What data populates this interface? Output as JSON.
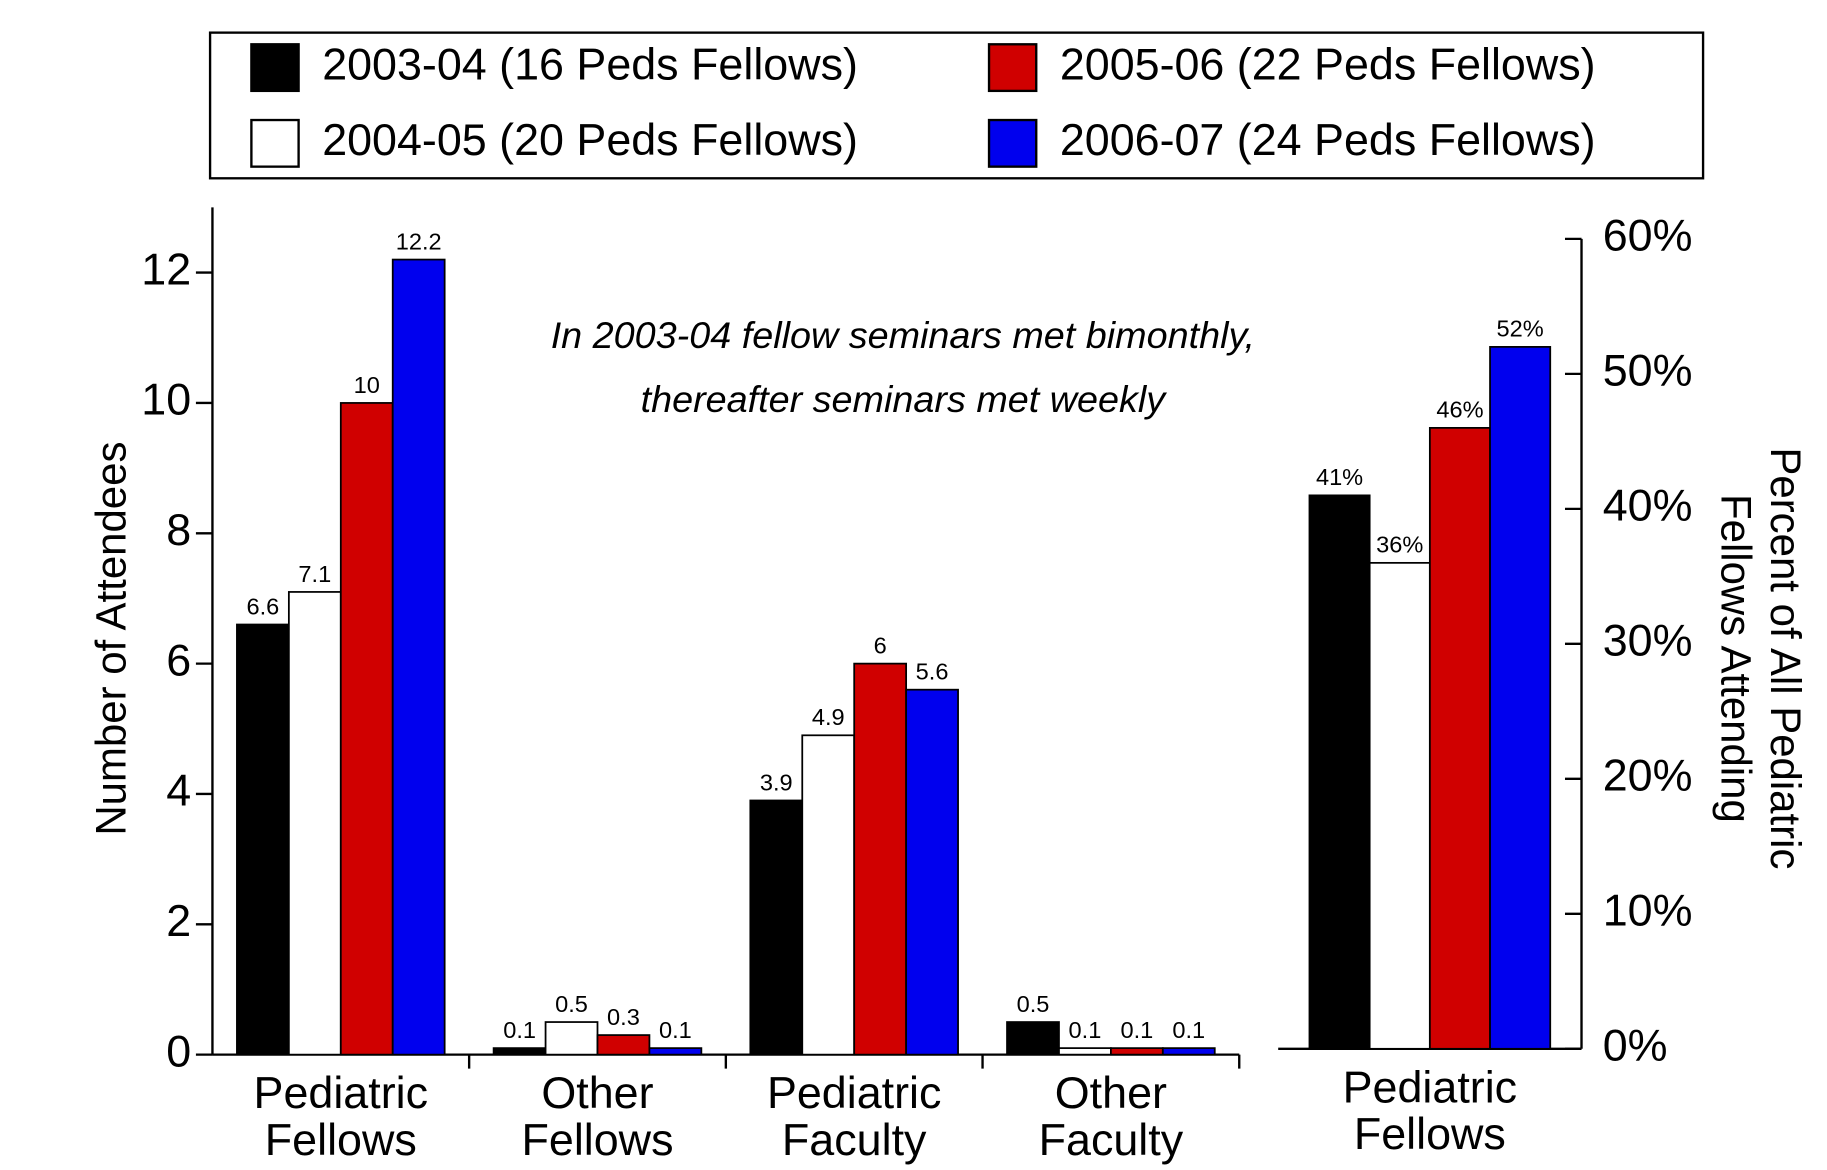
{
  "chart_data": [
    {
      "type": "bar",
      "ylabel": "Number of Attendees",
      "annotation": [
        "In 2003-04 fellow seminars met bimonthly,",
        "thereafter seminars met weekly"
      ],
      "categories": [
        "Pediatric Fellows",
        "Other Fellows",
        "Pediatric Faculty",
        "Other Faculty"
      ],
      "series": [
        {
          "name": "2003-04 (16 Peds Fellows)",
          "color": "#000000",
          "values": [
            6.6,
            0.1,
            3.9,
            0.5
          ]
        },
        {
          "name": "2004-05 (20 Peds Fellows)",
          "color": "#ffffff",
          "values": [
            7.1,
            0.5,
            4.9,
            0.1
          ]
        },
        {
          "name": "2005-06 (22 Peds Fellows)",
          "color": "#d00000",
          "values": [
            10,
            0.3,
            6,
            0.1
          ]
        },
        {
          "name": "2006-07 (24 Peds Fellows)",
          "color": "#0000ee",
          "values": [
            12.2,
            0.1,
            5.6,
            0.1
          ]
        }
      ],
      "ylim": [
        0,
        13
      ],
      "yticks": [
        0,
        2,
        4,
        6,
        8,
        10,
        12
      ],
      "grid": false
    },
    {
      "type": "bar",
      "y2label": [
        "Percent of All Pediatric",
        "Fellows Attending"
      ],
      "categories": [
        "Pediatric Fellows"
      ],
      "series": [
        {
          "color": "#000000",
          "axis": "y2",
          "values": [
            41
          ],
          "value_labels": [
            "41%"
          ]
        },
        {
          "color": "#ffffff",
          "axis": "y2",
          "values": [
            36
          ],
          "value_labels": [
            "36%"
          ]
        },
        {
          "color": "#d00000",
          "axis": "y2",
          "values": [
            46
          ],
          "value_labels": [
            "46%"
          ]
        },
        {
          "color": "#0000ee",
          "axis": "y2",
          "values": [
            52
          ],
          "value_labels": [
            "52%"
          ]
        }
      ],
      "y2lim": [
        0,
        60
      ],
      "y2ticks": [
        {
          "value": 0,
          "label": "0%"
        },
        {
          "value": 10,
          "label": "10%"
        },
        {
          "value": 20,
          "label": "20%"
        },
        {
          "value": 30,
          "label": "30%"
        },
        {
          "value": 40,
          "label": "40%"
        },
        {
          "value": 50,
          "label": "50%"
        },
        {
          "value": 60,
          "label": "60%"
        }
      ],
      "grid": false
    }
  ]
}
